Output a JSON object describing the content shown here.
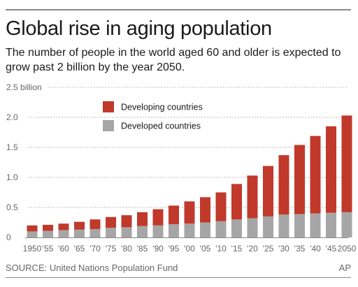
{
  "header": {
    "title": "Global rise in aging population",
    "subtitle": "The number of people in the world aged 60 and older is expected to grow past 2 billion by the year 2050."
  },
  "footer": {
    "source": "SOURCE: United Nations Population Fund",
    "credit": "AP"
  },
  "colors": {
    "developing": "#c0392b",
    "developed": "#a6a6a6",
    "grid": "#bbbbbb",
    "axis": "#888888"
  },
  "chart_data": {
    "type": "bar",
    "stacked": true,
    "categories": [
      "1950",
      "'55",
      "'60",
      "'65",
      "'70",
      "'75",
      "'80",
      "'85",
      "'90",
      "'95",
      "'00",
      "'05",
      "'10",
      "'15",
      "'20",
      "'25",
      "'30",
      "'35",
      "'40",
      "'45",
      "2050"
    ],
    "series": [
      {
        "name": "Developed countries",
        "color": "#a6a6a6",
        "values": [
          0.1,
          0.11,
          0.12,
          0.13,
          0.14,
          0.16,
          0.17,
          0.19,
          0.2,
          0.22,
          0.23,
          0.25,
          0.27,
          0.3,
          0.32,
          0.35,
          0.38,
          0.39,
          0.4,
          0.41,
          0.42
        ]
      },
      {
        "name": "Developing countries",
        "color": "#c0392b",
        "values": [
          0.1,
          0.1,
          0.11,
          0.13,
          0.16,
          0.18,
          0.2,
          0.23,
          0.27,
          0.31,
          0.37,
          0.42,
          0.48,
          0.59,
          0.71,
          0.84,
          0.99,
          1.15,
          1.29,
          1.44,
          1.61
        ]
      }
    ],
    "yticks": [
      0,
      0.5,
      1.0,
      1.5,
      2.0,
      2.5
    ],
    "ytick_labels": [
      "0",
      "0.5",
      "1.0",
      "1.5",
      "2.0",
      "2.5 billion"
    ],
    "ylim": [
      0,
      2.5
    ],
    "grid": true,
    "legend": "upper-left",
    "legend_order": [
      "Developing countries",
      "Developed countries"
    ]
  }
}
